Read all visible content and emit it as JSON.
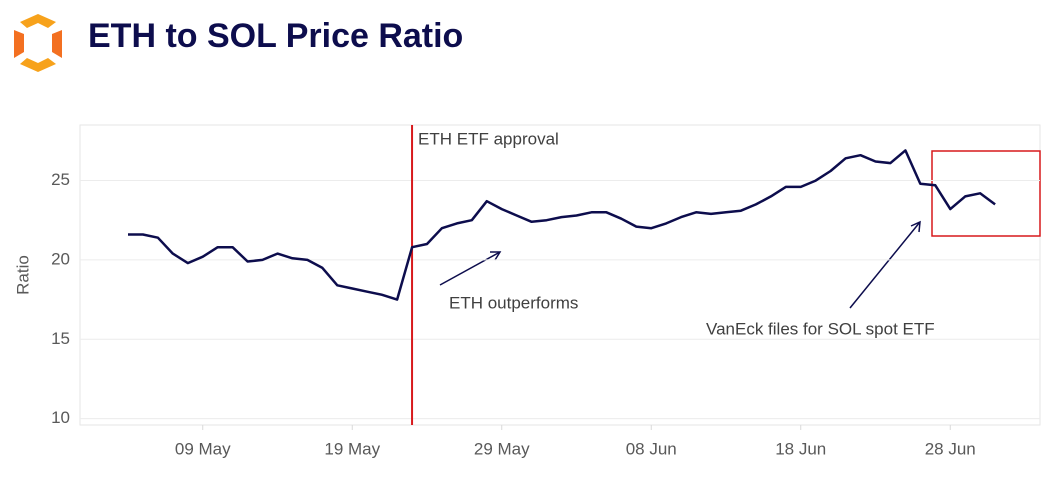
{
  "chart_data": {
    "type": "line",
    "title": "ETH to SOL Price Ratio",
    "y_label": "Ratio",
    "x": [
      "04 May",
      "05 May",
      "06 May",
      "07 May",
      "08 May",
      "09 May",
      "10 May",
      "11 May",
      "12 May",
      "13 May",
      "14 May",
      "15 May",
      "16 May",
      "17 May",
      "18 May",
      "19 May",
      "20 May",
      "21 May",
      "22 May",
      "23 May",
      "24 May",
      "25 May",
      "26 May",
      "27 May",
      "28 May",
      "29 May",
      "30 May",
      "31 May",
      "01 Jun",
      "02 Jun",
      "03 Jun",
      "04 Jun",
      "05 Jun",
      "06 Jun",
      "07 Jun",
      "08 Jun",
      "09 Jun",
      "10 Jun",
      "11 Jun",
      "12 Jun",
      "13 Jun",
      "14 Jun",
      "15 Jun",
      "16 Jun",
      "17 Jun",
      "18 Jun",
      "19 Jun",
      "20 Jun",
      "21 Jun",
      "22 Jun",
      "23 Jun",
      "24 Jun",
      "25 Jun",
      "26 Jun",
      "27 Jun",
      "28 Jun",
      "29 Jun",
      "30 Jun",
      "01 Jul"
    ],
    "series": [
      {
        "name": "ETH/SOL",
        "color": "#0d0d4d",
        "values": [
          21.6,
          21.6,
          21.4,
          20.4,
          19.8,
          20.2,
          20.8,
          20.8,
          19.9,
          20.0,
          20.4,
          20.1,
          20.0,
          19.5,
          18.4,
          18.2,
          18.0,
          17.8,
          17.5,
          20.8,
          21.0,
          22.0,
          22.3,
          22.5,
          23.7,
          23.2,
          22.8,
          22.4,
          22.5,
          22.7,
          22.8,
          23.0,
          23.0,
          22.6,
          22.1,
          22.0,
          22.3,
          22.7,
          23.0,
          22.9,
          23.0,
          23.1,
          23.5,
          24.0,
          24.6,
          24.6,
          25.0,
          25.6,
          26.4,
          26.6,
          26.2,
          26.1,
          26.9,
          24.8,
          24.7,
          23.2,
          24.0,
          24.2,
          23.5
        ]
      }
    ],
    "ylim": [
      9.6,
      28.5
    ],
    "yticks": [
      10,
      15,
      20,
      25
    ],
    "xticks": [
      "09 May",
      "19 May",
      "29 May",
      "08 Jun",
      "18 Jun",
      "28 Jun"
    ],
    "grid": true,
    "events": [
      {
        "label": "ETH ETF approval",
        "x": "23 May",
        "color": "#d7191c"
      }
    ],
    "annotations": [
      "ETH outperforms",
      "VanEck files for SOL spot ETF"
    ]
  }
}
